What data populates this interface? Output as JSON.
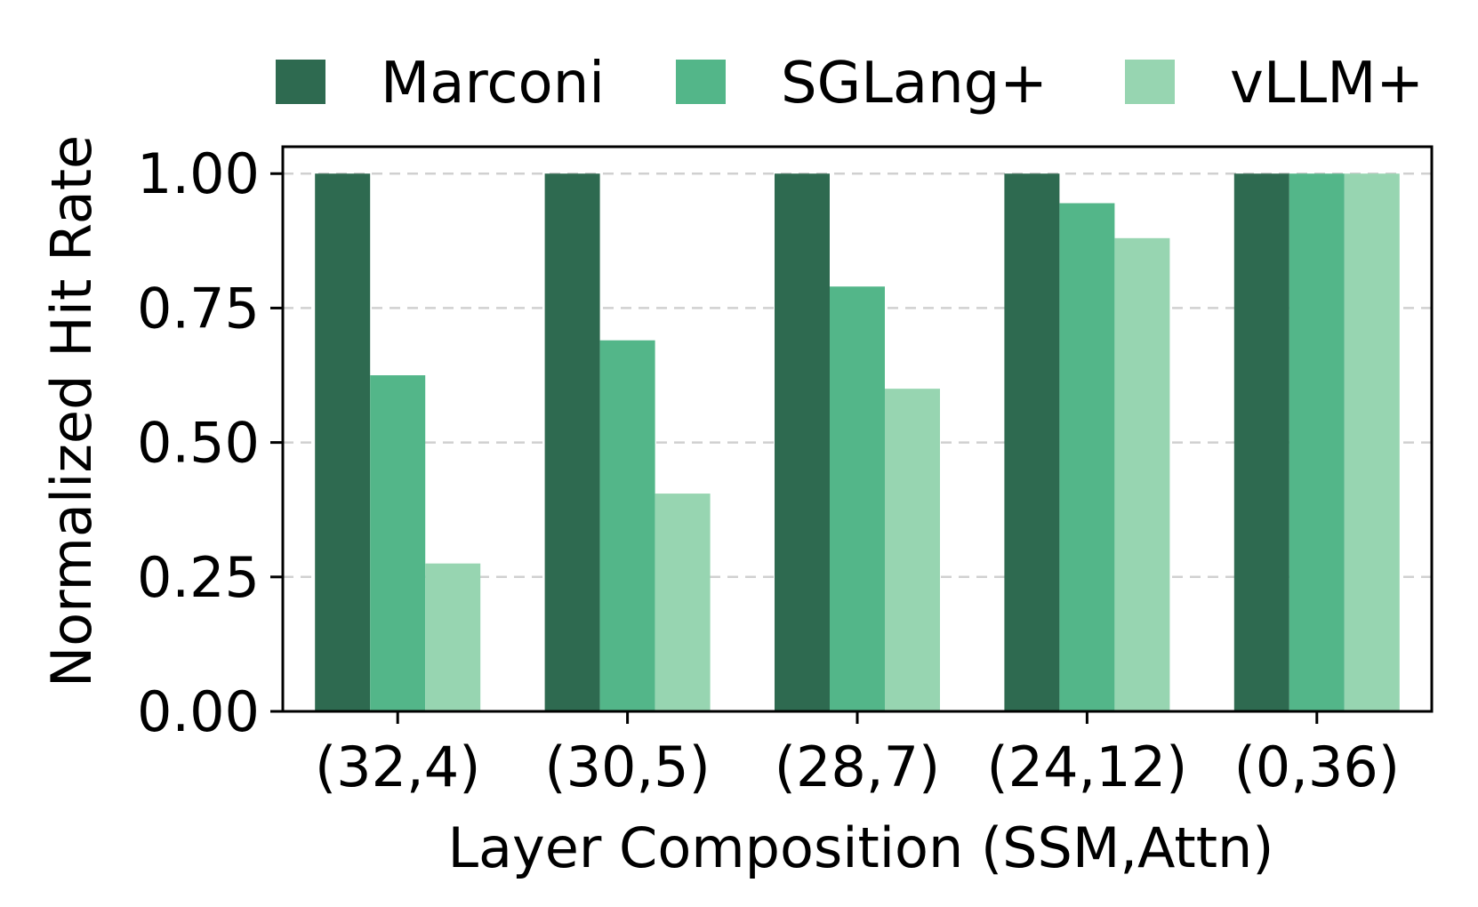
{
  "chart_data": {
    "type": "bar",
    "title": "",
    "xlabel": "Layer Composition (SSM,Attn)",
    "ylabel": "Normalized Hit Rate",
    "ylim": [
      0,
      1.05
    ],
    "yticks": [
      "0.00",
      "0.25",
      "0.50",
      "0.75",
      "1.00"
    ],
    "ytick_values": [
      0,
      0.25,
      0.5,
      0.75,
      1.0
    ],
    "grid": "horizontal dashed",
    "legend_position": "top, above plot",
    "categories": [
      "(32,4)",
      "(30,5)",
      "(28,7)",
      "(24,12)",
      "(0,36)"
    ],
    "series": [
      {
        "name": "Marconi",
        "color": "#2e6a50",
        "values": [
          1.0,
          1.0,
          1.0,
          1.0,
          1.0
        ]
      },
      {
        "name": "SGLang+",
        "color": "#53b689",
        "values": [
          0.625,
          0.69,
          0.79,
          0.945,
          1.0
        ]
      },
      {
        "name": "vLLM+",
        "color": "#97d5b1",
        "values": [
          0.275,
          0.405,
          0.6,
          0.88,
          1.0
        ]
      }
    ]
  }
}
